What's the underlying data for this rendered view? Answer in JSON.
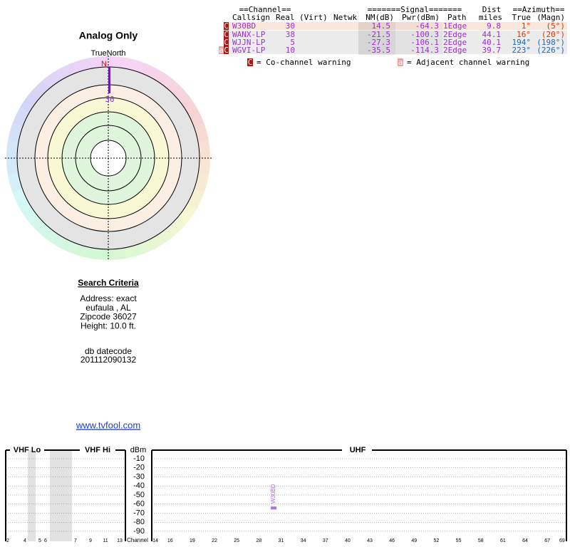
{
  "report": {
    "title": "Analog Only"
  },
  "polar": {
    "north_label": "TrueNorth",
    "north": "N",
    "station_label": "30"
  },
  "table": {
    "group_headers": [
      "==Channel==",
      "=======Signal=======",
      "Dist",
      "==Azimuth=="
    ],
    "headers": [
      "Callsign",
      "Real",
      "(Virt)",
      "Netwk",
      "NM(dB)",
      "Pwr(dBm)",
      "Path",
      "miles",
      "True",
      "(Magn)"
    ],
    "rows": [
      {
        "flags": [
          "C"
        ],
        "cells": [
          "W30BD",
          "30",
          "14.5",
          "-64.3",
          "1Edge",
          "9.8",
          "1°",
          "(5°)"
        ]
      },
      {
        "flags": [
          "C"
        ],
        "cells": [
          "WANX-LP",
          "38",
          "-21.5",
          "-100.3",
          "2Edge",
          "44.1",
          "16°",
          "(20°)"
        ]
      },
      {
        "flags": [
          "C"
        ],
        "cells": [
          "WJJN-LP",
          "5",
          "-27.3",
          "-106.1",
          "2Edge",
          "40.1",
          "194°",
          "(198°)"
        ]
      },
      {
        "flags": [
          "a",
          "C"
        ],
        "cells": [
          "WGVI-LP",
          "10",
          "-35.5",
          "-114.3",
          "2Edge",
          "39.7",
          "223°",
          "(226°)"
        ]
      }
    ]
  },
  "legend": [
    {
      "icon": "C",
      "text": "= Co-channel warning"
    },
    {
      "icon": "a",
      "text": "= Adjacent channel warning"
    }
  ],
  "search": {
    "title": "Search Criteria",
    "lines": [
      "Address: exact",
      "eufaula , AL",
      "Zipcode 36027",
      "Height: 10.0 ft."
    ],
    "db_label": "db datecode",
    "db_code": "201112090132"
  },
  "link": "www.tvfool.com",
  "spectrum": {
    "bands": [
      "VHF Lo",
      "VHF Hi",
      "UHF"
    ],
    "unit": "dBm",
    "dbm_ticks": [
      -10,
      -20,
      -30,
      -40,
      -50,
      -60,
      -70,
      -80,
      -90
    ],
    "axis_label": "Channel",
    "vhf_channels": [
      2,
      4,
      5,
      6,
      7,
      9,
      11,
      13
    ],
    "uhf_channels": [
      14,
      16,
      19,
      22,
      25,
      28,
      31,
      34,
      37,
      40,
      43,
      46,
      49,
      52,
      55,
      58,
      61,
      64,
      67,
      69
    ],
    "station_label": "W30BD"
  }
}
